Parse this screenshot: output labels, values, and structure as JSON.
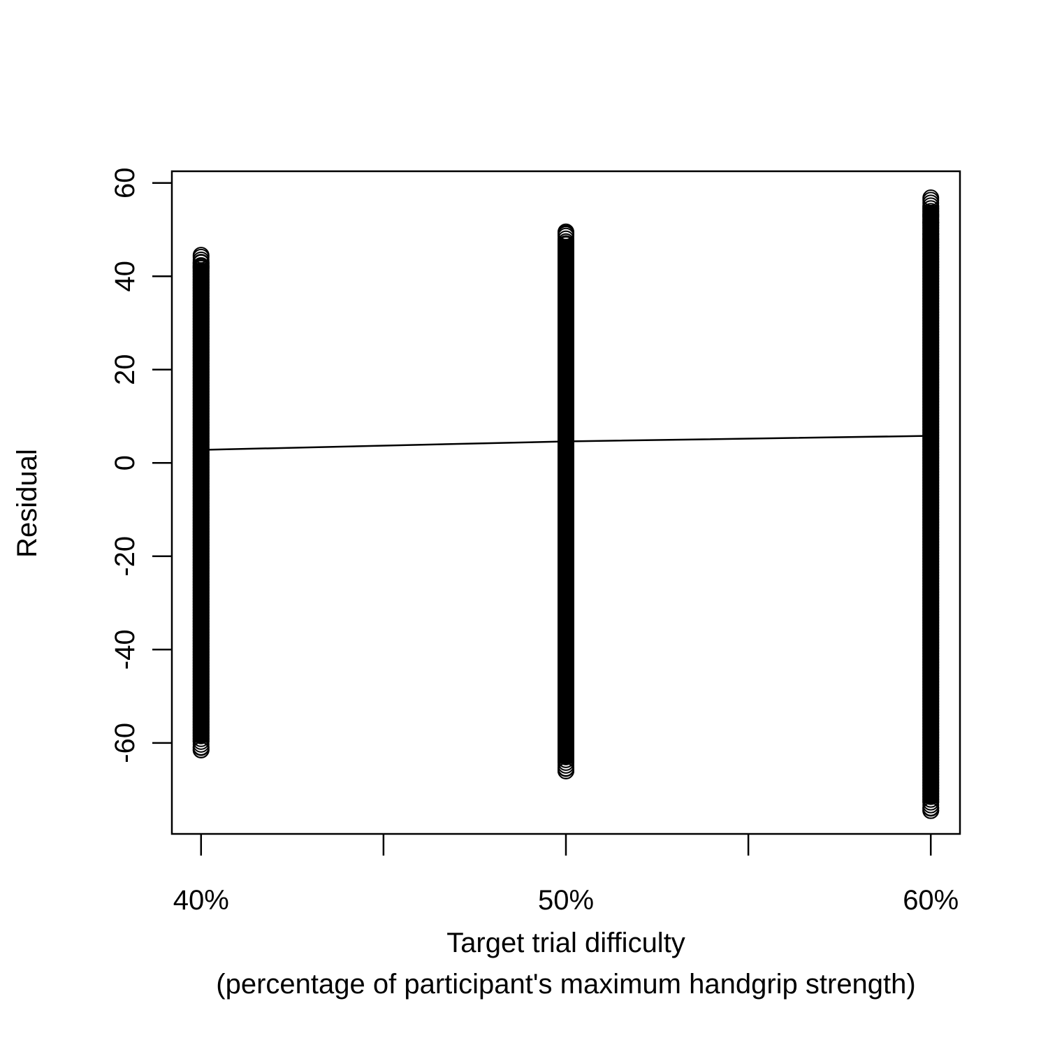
{
  "chart_data": {
    "type": "scatter",
    "title": "",
    "xlabel": "Target trial difficulty",
    "xlabel_line2": "(percentage of participant's maximum handgrip strength)",
    "ylabel": "Residual",
    "x_categories": [
      "40%",
      "50%",
      "60%"
    ],
    "x_values": [
      40,
      50,
      60
    ],
    "x_minor_ticks": [
      45,
      55
    ],
    "xlim": [
      39.2,
      60.8
    ],
    "ylim": [
      -79.5,
      62.5
    ],
    "y_ticks": [
      60,
      40,
      20,
      0,
      -20,
      -40,
      -60
    ],
    "grid": false,
    "legend": "none",
    "series": [
      {
        "x": 40,
        "min": -61.5,
        "max": 44.5,
        "outliers": [
          44.5,
          43.0,
          42.0,
          -61.0,
          -61.5
        ]
      },
      {
        "x": 50,
        "min": -66.0,
        "max": 49.5,
        "outliers": [
          49.5,
          49.0,
          47.0,
          46.0,
          44.5,
          -65.5,
          -66.0
        ]
      },
      {
        "x": 60,
        "min": -74.5,
        "max": 56.8,
        "outliers": [
          56.8,
          53.0,
          51.5,
          49.0,
          48.0,
          -74.0,
          -74.5
        ]
      }
    ],
    "fit_line": {
      "x": [
        40,
        50,
        60
      ],
      "y": [
        2.8,
        4.6,
        5.8
      ]
    },
    "marker": "open-circle",
    "color": "#000000"
  }
}
